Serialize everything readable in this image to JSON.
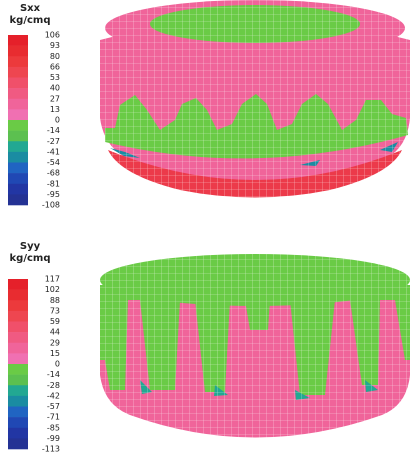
{
  "panels": [
    {
      "title": "Sxx",
      "unit": "kg/cmq",
      "labels": [
        "106",
        "93",
        "80",
        "66",
        "53",
        "40",
        "27",
        "13",
        "0",
        "-14",
        "-27",
        "-41",
        "-54",
        "-68",
        "-81",
        "-95",
        "-108"
      ],
      "colors": [
        "#e5202a",
        "#e82c30",
        "#ec3a3c",
        "#ee4650",
        "#f0506a",
        "#f05a82",
        "#f0649a",
        "#f070b2",
        "#6acb46",
        "#5cc050",
        "#22a892",
        "#1a8ca2",
        "#2064c2",
        "#2048b4",
        "#2236a4",
        "#243294"
      ]
    },
    {
      "title": "Syy",
      "unit": "kg/cmq",
      "labels": [
        "117",
        "102",
        "88",
        "73",
        "59",
        "44",
        "29",
        "15",
        "0",
        "-14",
        "-28",
        "-42",
        "-57",
        "-71",
        "-85",
        "-99",
        "-113"
      ],
      "colors": [
        "#e5202a",
        "#e82c30",
        "#ec3a3c",
        "#ee4650",
        "#f0506a",
        "#f05a82",
        "#f0649a",
        "#f070b2",
        "#6acb46",
        "#5cc050",
        "#22a892",
        "#1a8ca2",
        "#2064c2",
        "#2048b4",
        "#2236a4",
        "#243294"
      ]
    }
  ]
}
